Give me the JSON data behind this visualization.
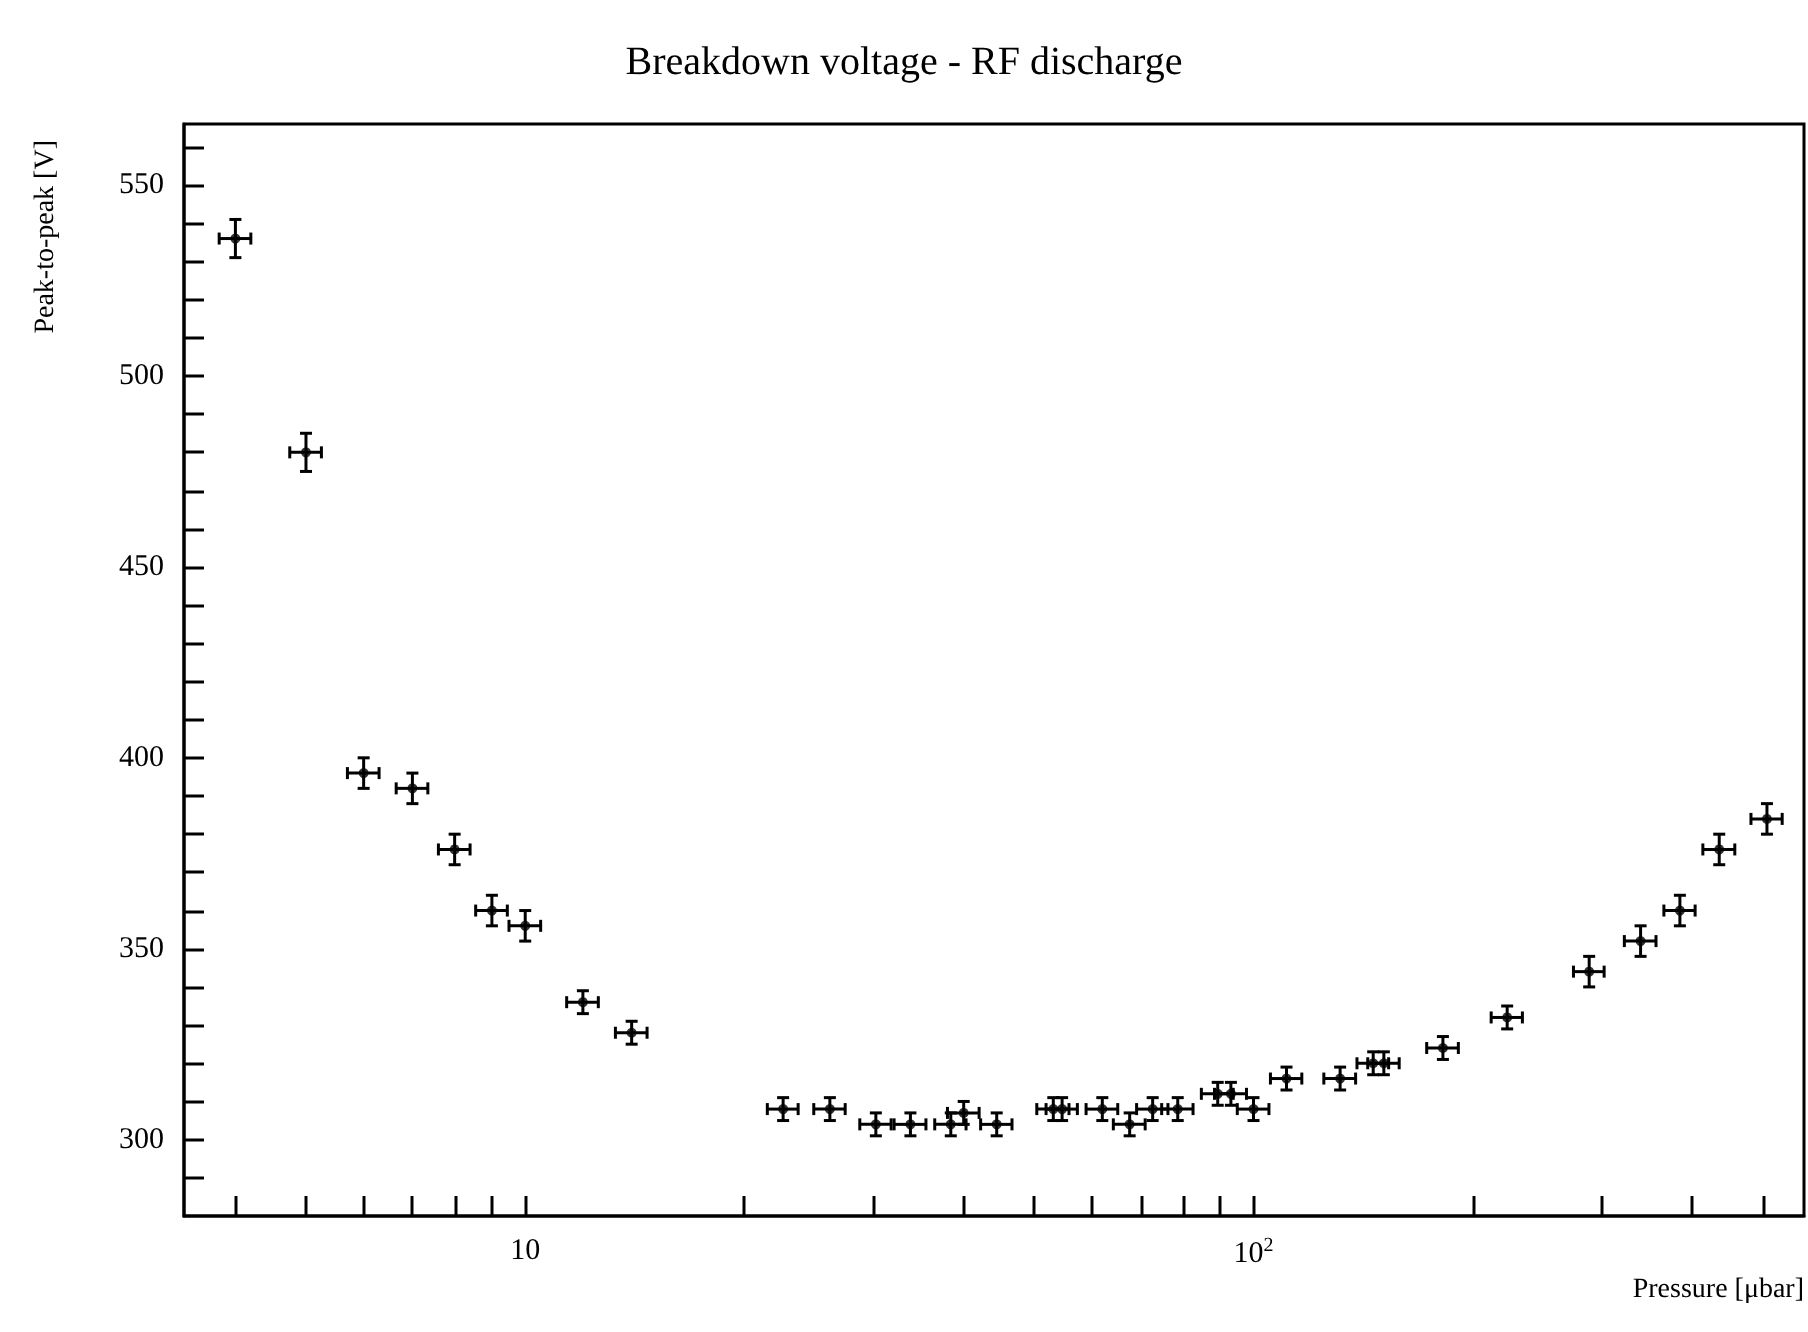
{
  "chart_data": {
    "type": "scatter",
    "title": "Breakdown voltage - RF discharge",
    "xlabel": "Pressure [μbar]",
    "ylabel": "Peak-to-peak [V]",
    "x": [
      4,
      5,
      6,
      7,
      8,
      9,
      10,
      12,
      14,
      22.6,
      26.2,
      30.3,
      33.8,
      38.4,
      40,
      44.4,
      53.1,
      54.6,
      62,
      67.6,
      72.7,
      78.7,
      89.3,
      93.1,
      100,
      111,
      131.5,
      146,
      151,
      182,
      223,
      289,
      340,
      385,
      436,
      507
    ],
    "values": [
      536,
      480,
      396,
      392,
      376,
      360,
      356,
      336,
      328,
      308,
      308,
      304,
      304,
      304,
      307,
      304,
      308,
      308,
      308,
      304,
      308,
      308,
      312,
      312,
      308,
      316,
      316,
      320,
      320,
      324,
      332,
      344,
      352,
      360,
      376,
      384
    ],
    "errors": [
      5,
      5,
      4,
      4,
      4,
      4,
      4,
      3,
      3,
      3,
      3,
      3,
      3,
      3,
      3,
      3,
      3,
      3,
      3,
      3,
      3,
      3,
      3,
      3,
      3,
      3,
      3,
      3,
      3,
      3,
      3,
      4,
      4,
      4,
      4,
      4
    ],
    "xerrors": [
      0.2,
      0.25,
      0.3,
      0.35,
      0.4,
      0.45,
      0.5,
      0.6,
      0.7,
      1.1,
      1.3,
      1.5,
      1.7,
      1.9,
      2,
      2.2,
      2.7,
      2.7,
      3.1,
      3.4,
      3.6,
      3.9,
      4.5,
      4.7,
      5,
      5.5,
      6.6,
      7.3,
      7.5,
      9.1,
      11,
      14,
      17,
      19,
      22,
      25
    ],
    "color": "#000000",
    "marker": "circle",
    "log": "x",
    "grid": false,
    "xlim": [
      3.4,
      570
    ],
    "ylim": [
      280,
      566
    ],
    "xticks": [
      {
        "value": 4,
        "label": null
      },
      {
        "value": 5,
        "label": null
      },
      {
        "value": 6,
        "label": null
      },
      {
        "value": 7,
        "label": null
      },
      {
        "value": 8,
        "label": null
      },
      {
        "value": 9,
        "label": null
      },
      {
        "value": 10,
        "label": "10"
      },
      {
        "value": 20,
        "label": null
      },
      {
        "value": 30,
        "label": null
      },
      {
        "value": 40,
        "label": null
      },
      {
        "value": 50,
        "label": null
      },
      {
        "value": 60,
        "label": null
      },
      {
        "value": 70,
        "label": null
      },
      {
        "value": 80,
        "label": null
      },
      {
        "value": 90,
        "label": null
      },
      {
        "value": 100,
        "label": "10$^{2}$"
      },
      {
        "value": 200,
        "label": null
      },
      {
        "value": 300,
        "label": null
      },
      {
        "value": 400,
        "label": null
      },
      {
        "value": 500,
        "label": null
      }
    ],
    "yticks": [
      {
        "value": 290,
        "label": null
      },
      300,
      {
        "value": 310,
        "label": null
      },
      {
        "value": 320,
        "label": null
      },
      {
        "value": 330,
        "label": null
      },
      {
        "value": 340,
        "label": null
      },
      350,
      {
        "value": 360,
        "label": null
      },
      {
        "value": 370,
        "label": null
      },
      {
        "value": 380,
        "label": null
      },
      {
        "value": 390,
        "label": null
      },
      400,
      {
        "value": 410,
        "label": null
      },
      {
        "value": 420,
        "label": null
      },
      {
        "value": 430,
        "label": null
      },
      {
        "value": 440,
        "label": null
      },
      450,
      {
        "value": 460,
        "label": null
      },
      {
        "value": 470,
        "label": null
      },
      {
        "value": 480,
        "label": null
      },
      {
        "value": 490,
        "label": null
      },
      500,
      {
        "value": 510,
        "label": null
      },
      {
        "value": 520,
        "label": null
      },
      {
        "value": 530,
        "label": null
      },
      {
        "value": 540,
        "label": null
      },
      550,
      {
        "value": 560,
        "label": null
      }
    ]
  }
}
